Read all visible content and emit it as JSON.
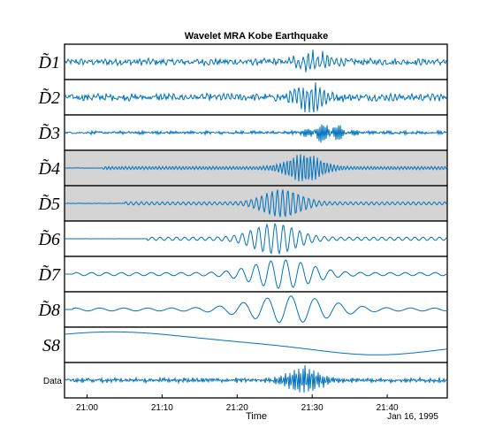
{
  "chart_data": {
    "type": "line",
    "title": "Wavelet MRA Kobe Earthquake",
    "xlabel": "Time",
    "date_label": "Jan 16, 1995",
    "x_ticks": [
      "21:00",
      "21:10",
      "21:20",
      "21:30",
      "21:40"
    ],
    "x_range": [
      "20:57",
      "21:48"
    ],
    "line_color": "#0072BD",
    "highlight_color": "#d4d4d4",
    "series": [
      {
        "name": "D1",
        "display": "D̃1",
        "style": "tilde",
        "highlighted": false,
        "amp": 0.55,
        "peak_time": "21:30",
        "noise": 1.0,
        "period_min": 0.1,
        "onset": "20:58"
      },
      {
        "name": "D2",
        "display": "D̃2",
        "style": "tilde",
        "highlighted": false,
        "amp": 0.75,
        "peak_time": "21:30",
        "noise": 1.0,
        "period_min": 0.15,
        "onset": "20:58"
      },
      {
        "name": "D3",
        "display": "D̃3",
        "style": "tilde",
        "highlighted": false,
        "amp": 0.55,
        "peak_time": "21:32",
        "noise": 0.35,
        "period_min": 0.25,
        "onset": "21:00"
      },
      {
        "name": "D4",
        "display": "D̃4",
        "style": "tilde",
        "highlighted": true,
        "amp": 0.85,
        "peak_time": "21:29",
        "noise": 0.05,
        "period_min": 0.45,
        "onset": "21:02"
      },
      {
        "name": "D5",
        "display": "D̃5",
        "style": "tilde",
        "highlighted": true,
        "amp": 0.85,
        "peak_time": "21:26",
        "noise": 0.05,
        "period_min": 0.7,
        "onset": "21:05"
      },
      {
        "name": "D6",
        "display": "D̃6",
        "style": "tilde",
        "highlighted": false,
        "amp": 0.9,
        "peak_time": "21:25",
        "noise": 0.0,
        "period_min": 1.1,
        "onset": "21:08"
      },
      {
        "name": "D7",
        "display": "D̃7",
        "style": "tilde",
        "highlighted": false,
        "amp": 0.85,
        "peak_time": "21:26",
        "noise": 0.0,
        "period_min": 2.0,
        "onset": "20:58"
      },
      {
        "name": "D8",
        "display": "D̃8",
        "style": "tilde",
        "highlighted": false,
        "amp": 0.8,
        "peak_time": "21:27",
        "noise": 0.0,
        "period_min": 3.2,
        "onset": "20:58"
      },
      {
        "name": "S8",
        "display": "S8",
        "style": "plain",
        "highlighted": false,
        "amp": 0.0,
        "peak_time": "21:00",
        "noise": 0.0,
        "period_min": 0.0,
        "onset": "20:57"
      },
      {
        "name": "Data",
        "display": "Data",
        "style": "small",
        "highlighted": false,
        "amp": 0.85,
        "peak_time": "21:29",
        "noise": 0.45,
        "period_min": 0.2,
        "onset": "20:58"
      }
    ]
  }
}
